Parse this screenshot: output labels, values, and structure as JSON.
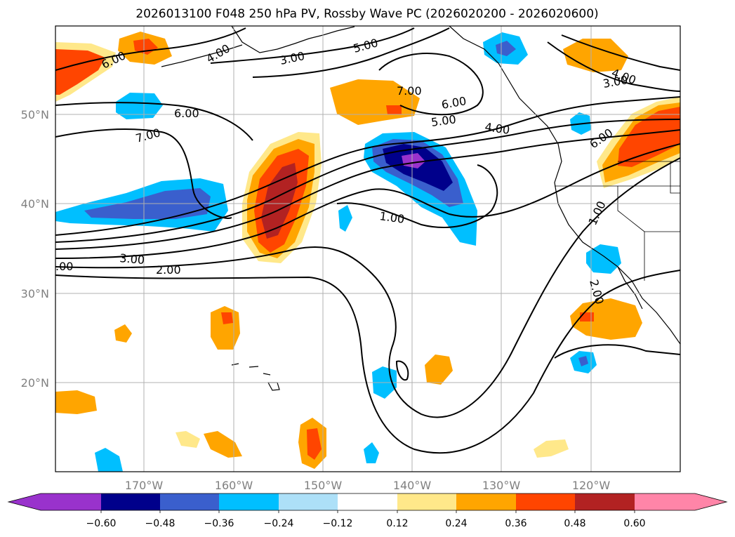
{
  "title": "2026013100 F048 250 hPa PV, Rossby Wave PC (2026020200 - 2026020600)",
  "colors": {
    "neg_060": "#9932CC",
    "neg_048": "#00008B",
    "neg_036": "#3A5FCD",
    "neg_024": "#00BFFF",
    "neg_012": "#ADE0F8",
    "zero": "#FFFFFF",
    "pos_012": "#FFE88A",
    "pos_024": "#FFA500",
    "pos_036": "#FF4500",
    "pos_048": "#B22222",
    "pos_060": "#FF85A8"
  },
  "map": {
    "lon_range": [
      -180,
      -110
    ],
    "lat_range": [
      10,
      60
    ],
    "lon_ticks": [
      "170°W",
      "160°W",
      "150°W",
      "140°W",
      "130°W",
      "120°W"
    ],
    "lat_ticks": [
      "20°N",
      "30°N",
      "40°N",
      "50°N"
    ],
    "contour_labels": [
      "6.00",
      "4.00",
      "3.00",
      "5.00",
      "7.00",
      "6.00",
      "5.00",
      "4.00",
      "6.00",
      "4.00",
      "3.00",
      "7.00",
      "6.00",
      "1.00",
      "1.00",
      "3.00",
      "2.00",
      ".00",
      "2.00"
    ]
  },
  "colorbar": {
    "labels": [
      "−0.60",
      "−0.48",
      "−0.36",
      "−0.24",
      "−0.12",
      "0.12",
      "0.24",
      "0.36",
      "0.48",
      "0.60"
    ]
  }
}
